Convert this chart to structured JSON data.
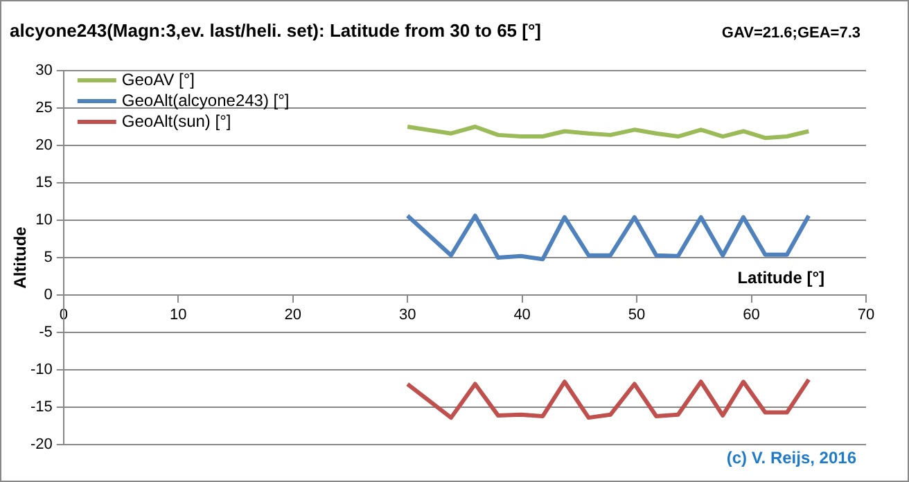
{
  "chart_data": {
    "type": "line",
    "title": "alcyone243(Magn:3,ev. last/heli. set): Latitude from 30 to 65 [°]",
    "xlabel": "Latitude [°]",
    "ylabel": "Altitude",
    "annotations": [
      "GAV=21.6;GEA=7.3",
      "(c) V. Reijs, 2016"
    ],
    "x": [
      30,
      33.8,
      35.9,
      37.9,
      39.9,
      41.8,
      43.7,
      45.8,
      47.7,
      49.8,
      51.7,
      53.6,
      55.6,
      57.5,
      59.3,
      61.2,
      63.1,
      65
    ],
    "series": [
      {
        "name": "GeoAV [°]",
        "color": "#9bbb59",
        "values": [
          22.5,
          21.6,
          22.5,
          21.4,
          21.2,
          21.2,
          21.9,
          21.6,
          21.4,
          22.1,
          21.6,
          21.2,
          22.1,
          21.2,
          21.9,
          21.0,
          21.2,
          21.9
        ]
      },
      {
        "name": "GeoAlt(alcyone243) [°]",
        "color": "#4f81bd",
        "values": [
          10.6,
          5.3,
          10.6,
          5.0,
          5.2,
          4.8,
          10.4,
          5.3,
          5.3,
          10.4,
          5.3,
          5.2,
          10.4,
          5.3,
          10.4,
          5.4,
          5.4,
          10.6
        ]
      },
      {
        "name": "GeoAlt(sun) [°]",
        "color": "#c0504d",
        "values": [
          -11.9,
          -16.4,
          -11.9,
          -16.1,
          -16.0,
          -16.2,
          -11.6,
          -16.4,
          -16.0,
          -11.9,
          -16.2,
          -16.0,
          -11.6,
          -16.1,
          -11.6,
          -15.7,
          -15.7,
          -11.3
        ]
      }
    ],
    "xlim": [
      0,
      70
    ],
    "xticks": [
      0,
      10,
      20,
      30,
      40,
      50,
      60,
      70
    ],
    "ylim": [
      -20,
      30
    ],
    "yticks": [
      -20,
      -15,
      -10,
      -5,
      0,
      5,
      10,
      15,
      20,
      25,
      30
    ],
    "grid": "y",
    "legend": "top left",
    "marker": "none",
    "line_style": "solid"
  }
}
